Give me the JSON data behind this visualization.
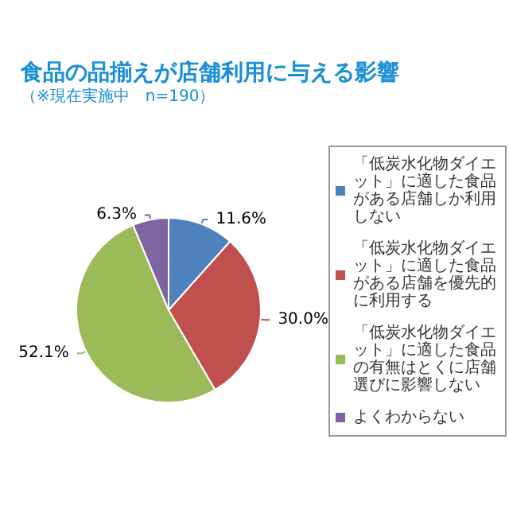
{
  "chart_data": {
    "type": "pie",
    "title": "食品の品揃えが店舗利用に与える影響",
    "subtitle": "（※現在実施中　n=190）",
    "categories": [
      "「低炭水化物ダイエット」に適した食品がある店舗しか利用しない",
      "「低炭水化物ダイエット」に適した食品がある店舗を優先的に利用する",
      "「低炭水化物ダイエット」に適した食品の有無はとくに店舗選びに影響しない",
      "よくわからない"
    ],
    "values": [
      11.6,
      30.0,
      52.1,
      6.3
    ],
    "colors": [
      "#4f81bd",
      "#c0504d",
      "#9bbb59",
      "#8064a2"
    ],
    "value_labels": [
      "11.6%",
      "30.0%",
      "52.1%",
      "6.3%"
    ],
    "legend": "right"
  }
}
